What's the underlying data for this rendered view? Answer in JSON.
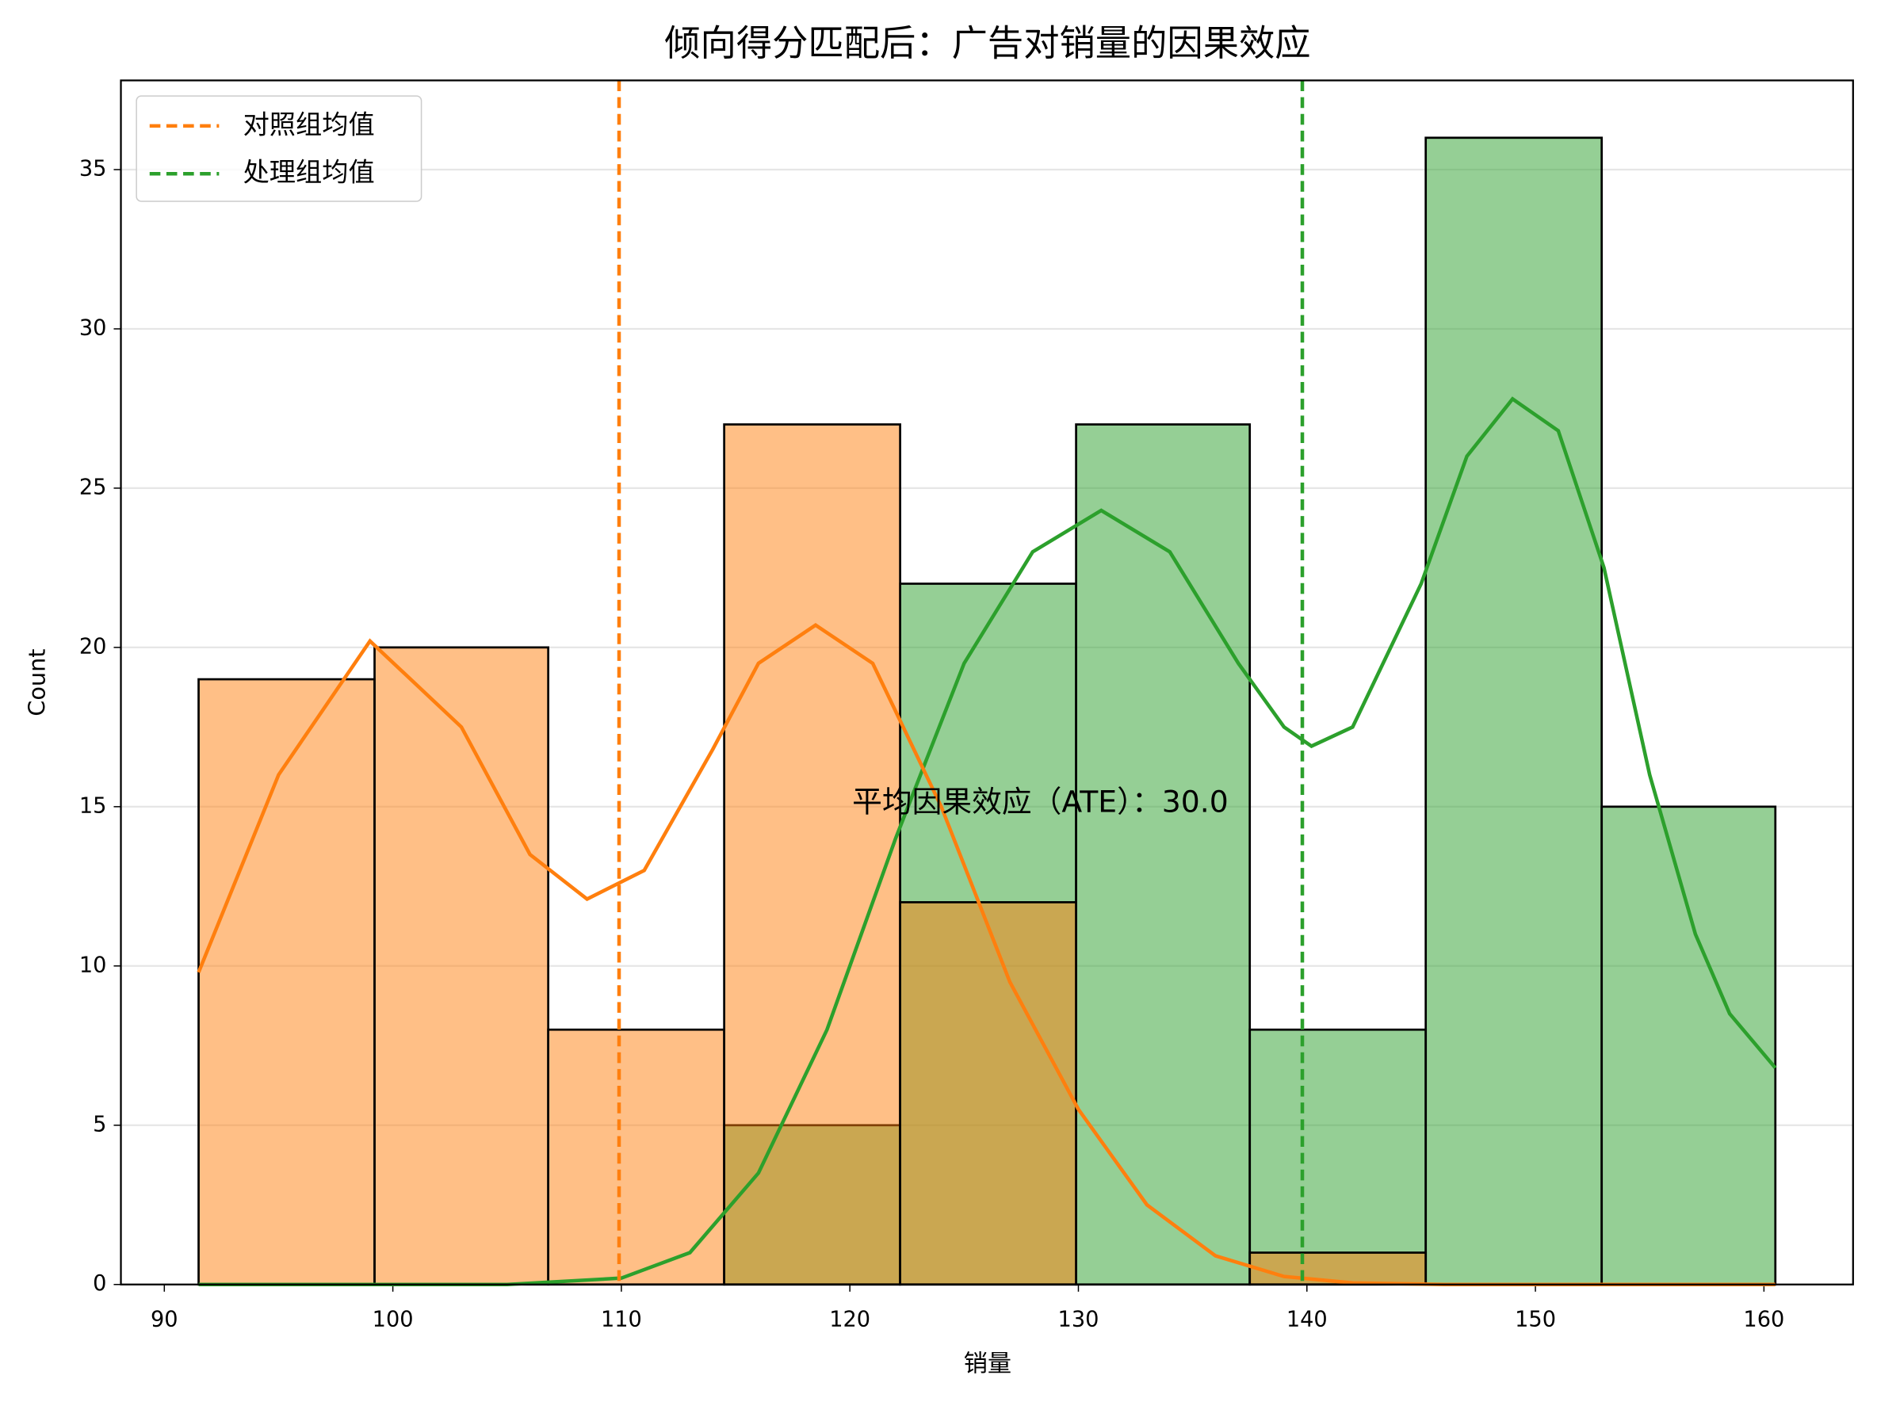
{
  "chart_data": {
    "type": "histogram",
    "title": "倾向得分匹配后：广告对销量的因果效应",
    "xlabel": "销量",
    "ylabel": "Count",
    "bins": [
      91.5,
      99.2,
      106.8,
      114.5,
      122.2,
      129.9,
      137.5,
      145.2,
      152.9,
      160.5
    ],
    "series": [
      {
        "color": "#2ca02c",
        "values": [
          0,
          0,
          0,
          5,
          22,
          27,
          8,
          36,
          15
        ],
        "kde": {
          "x": [
            91.5,
            105,
            110,
            113,
            116,
            119,
            122,
            125,
            128,
            131,
            134,
            137,
            139,
            140.2,
            142,
            145,
            147,
            149,
            151,
            153,
            155,
            157,
            158.5,
            160.5
          ],
          "y": [
            0,
            0,
            0.2,
            1,
            3.5,
            8,
            14,
            19.5,
            23,
            24.3,
            23,
            19.5,
            17.5,
            16.9,
            17.5,
            22,
            26,
            27.8,
            26.8,
            22.5,
            16,
            11,
            8.5,
            6.8
          ]
        }
      },
      {
        "color": "#ff7f0e",
        "values": [
          19,
          20,
          8,
          27,
          12,
          0,
          1,
          0,
          0
        ],
        "kde": {
          "x": [
            91.5,
            95,
            99,
            103,
            106,
            108.5,
            111,
            114,
            116,
            118.5,
            121,
            124,
            127,
            130,
            133,
            136,
            139,
            142,
            146,
            160.5
          ],
          "y": [
            9.8,
            16,
            20.2,
            17.5,
            13.5,
            12.1,
            13,
            16.8,
            19.5,
            20.7,
            19.5,
            15,
            9.5,
            5.5,
            2.5,
            0.9,
            0.25,
            0.05,
            0,
            0
          ]
        }
      }
    ],
    "vlines": [
      {
        "name": "对照组均值",
        "x": 109.9,
        "color": "#ff7f0e"
      },
      {
        "name": "处理组均值",
        "x": 139.8,
        "color": "#2ca02c"
      }
    ],
    "annotation": {
      "text": "平均因果效应（ATE）：30.0",
      "x": 120.1,
      "y": 15.1
    },
    "xlim": [
      88.1,
      163.9
    ],
    "ylim": [
      0,
      37.8
    ],
    "xticks": [
      90,
      100,
      110,
      120,
      130,
      140,
      150,
      160
    ],
    "yticks": [
      0,
      5,
      10,
      15,
      20,
      25,
      30,
      35
    ],
    "grid": "y",
    "legend": "upper left"
  }
}
